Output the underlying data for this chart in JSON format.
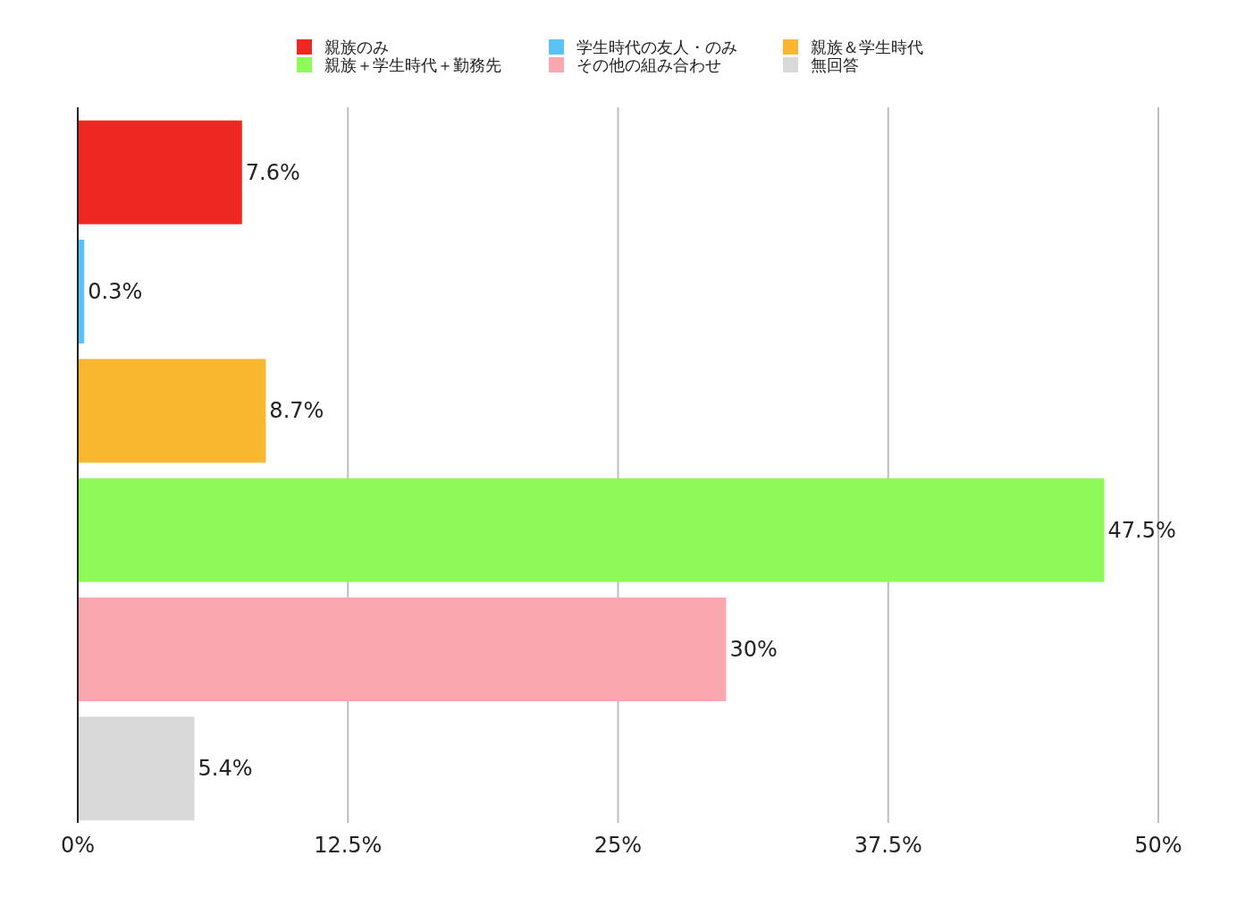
{
  "chart_data": {
    "type": "bar",
    "orientation": "horizontal",
    "categories": [
      null
    ],
    "series": [
      {
        "name": "親族のみ",
        "color": "#ee2722",
        "values": [
          7.6
        ],
        "value_labels": [
          "7.6%"
        ]
      },
      {
        "name": "学生時代の友人・のみ",
        "color": "#5bc2f7",
        "values": [
          0.3
        ],
        "value_labels": [
          "0.3%"
        ]
      },
      {
        "name": "親族＆学生時代",
        "color": "#f8b72f",
        "values": [
          8.7
        ],
        "value_labels": [
          "8.7%"
        ]
      },
      {
        "name": "親族＋学生時代＋勤務先",
        "color": "#8efa5a",
        "values": [
          47.5
        ],
        "value_labels": [
          "47.5%"
        ]
      },
      {
        "name": "その他の組み合わせ",
        "color": "#faa8b0",
        "values": [
          30
        ],
        "value_labels": [
          "30%"
        ]
      },
      {
        "name": "無回答",
        "color": "#d9d9d9",
        "values": [
          5.4
        ],
        "value_labels": [
          "5.4%"
        ]
      }
    ],
    "xlim": [
      0,
      50
    ],
    "xticks": [
      {
        "value": 0,
        "label": "0%"
      },
      {
        "value": 12.5,
        "label": "12.5%"
      },
      {
        "value": 25,
        "label": "25%"
      },
      {
        "value": 37.5,
        "label": "37.5%"
      },
      {
        "value": 50,
        "label": "50%"
      }
    ],
    "grid": "x",
    "legend": "top"
  }
}
